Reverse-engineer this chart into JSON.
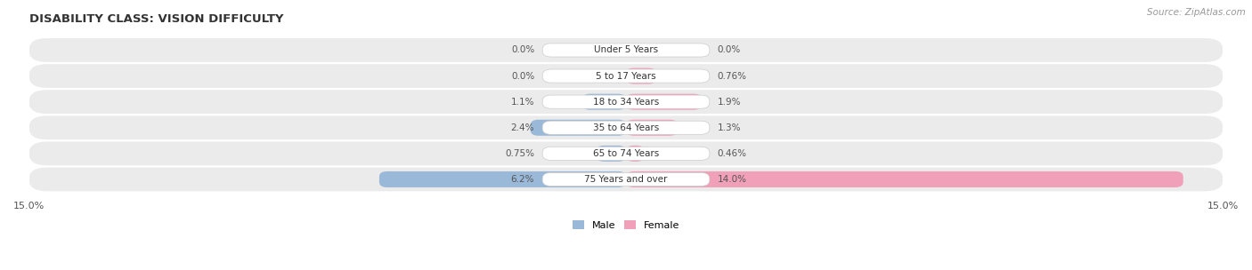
{
  "title": "DISABILITY CLASS: VISION DIFFICULTY",
  "source": "Source: ZipAtlas.com",
  "categories": [
    "Under 5 Years",
    "5 to 17 Years",
    "18 to 34 Years",
    "35 to 64 Years",
    "65 to 74 Years",
    "75 Years and over"
  ],
  "male_values": [
    0.0,
    0.0,
    1.1,
    2.4,
    0.75,
    6.2
  ],
  "female_values": [
    0.0,
    0.76,
    1.9,
    1.3,
    0.46,
    14.0
  ],
  "male_color": "#9ab8d8",
  "female_color": "#f0a0b8",
  "row_bg_color": "#ebebeb",
  "x_max": 15.0,
  "x_min": -15.0,
  "title_fontsize": 9.5,
  "tick_fontsize": 8,
  "source_fontsize": 7.5,
  "value_fontsize": 7.5,
  "cat_fontsize": 7.5
}
